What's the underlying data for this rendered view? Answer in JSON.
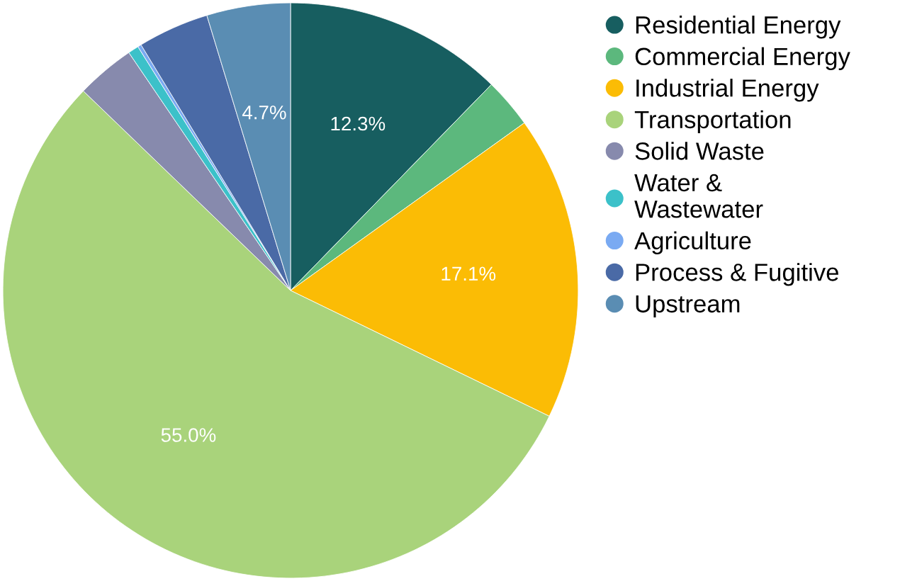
{
  "chart_data": {
    "type": "pie",
    "categories": [
      "Residential Energy",
      "Commercial Energy",
      "Industrial Energy",
      "Transportation",
      "Solid Waste",
      "Water &\nWastewater",
      "Agriculture",
      "Process & Fugitive",
      "Upstream"
    ],
    "values": [
      12.3,
      2.8,
      17.1,
      55.0,
      3.3,
      0.6,
      0.2,
      4.0,
      4.7
    ],
    "value_labels": [
      "12.3%",
      null,
      "17.1%",
      "55.0%",
      null,
      null,
      null,
      null,
      "4.7%"
    ],
    "colors": [
      "#175e60",
      "#5cb87d",
      "#fbbc05",
      "#a9d37b",
      "#878aad",
      "#3cc1c9",
      "#7aaaf2",
      "#4a6aa6",
      "#5a8db3"
    ],
    "legend": "right"
  }
}
